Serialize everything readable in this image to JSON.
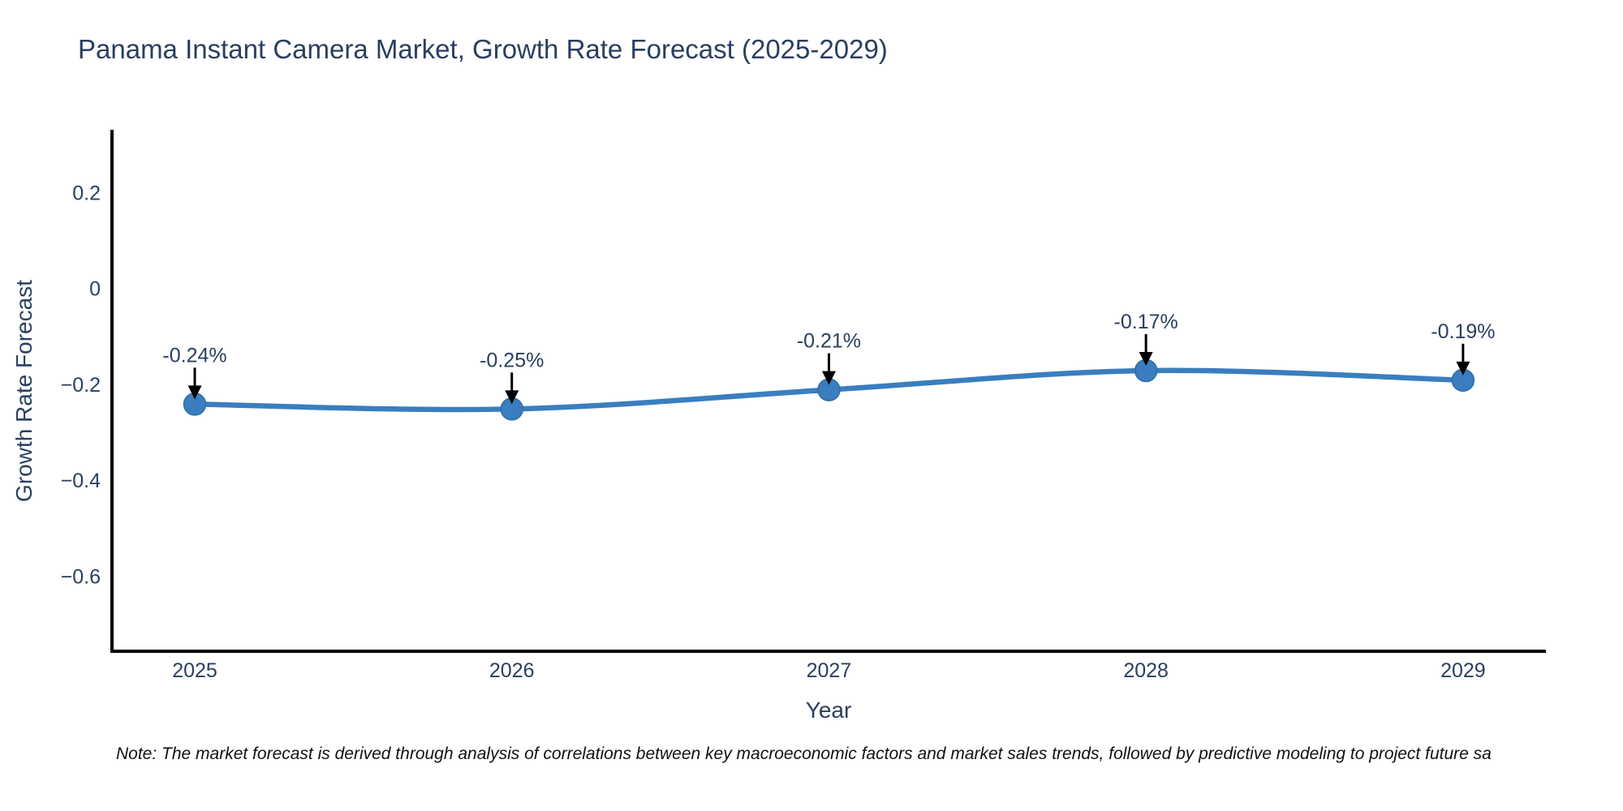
{
  "title": "Panama Instant Camera Market, Growth Rate Forecast (2025-2029)",
  "note": "Note: The market forecast is derived through analysis of correlations between key macroeconomic factors and market sales trends, followed by predictive modeling to project future sa",
  "chart_data": {
    "type": "line",
    "title": "Panama Instant Camera Market, Growth Rate Forecast (2025-2029)",
    "xlabel": "Year",
    "ylabel": "Growth Rate Forecast",
    "x": [
      2025,
      2026,
      2027,
      2028,
      2029
    ],
    "series": [
      {
        "name": "Growth Rate Forecast",
        "values": [
          -0.24,
          -0.25,
          -0.21,
          -0.17,
          -0.19
        ]
      }
    ],
    "point_labels": [
      "-0.24%",
      "-0.25%",
      "-0.21%",
      "-0.17%",
      "-0.19%"
    ],
    "xtick_labels": [
      "2025",
      "2026",
      "2027",
      "2028",
      "2029"
    ],
    "yticks": [
      0.2,
      0,
      -0.2,
      -0.4,
      -0.6
    ],
    "ytick_labels": [
      "0.2",
      "0",
      "−0.2",
      "−0.4",
      "−0.6"
    ],
    "ylim": [
      -0.754,
      0.333
    ],
    "xlim": [
      2024.74,
      2029.26
    ],
    "grid": false,
    "legend": false,
    "line_shape": "spline",
    "colors": {
      "line": "#3a7ebf",
      "marker": "#3a7ebf",
      "marker_edge": "#2f6da8",
      "arrow": "#000000",
      "axis_line": "#000000",
      "text": "#2a3f5f",
      "note_text": "#111111"
    }
  }
}
